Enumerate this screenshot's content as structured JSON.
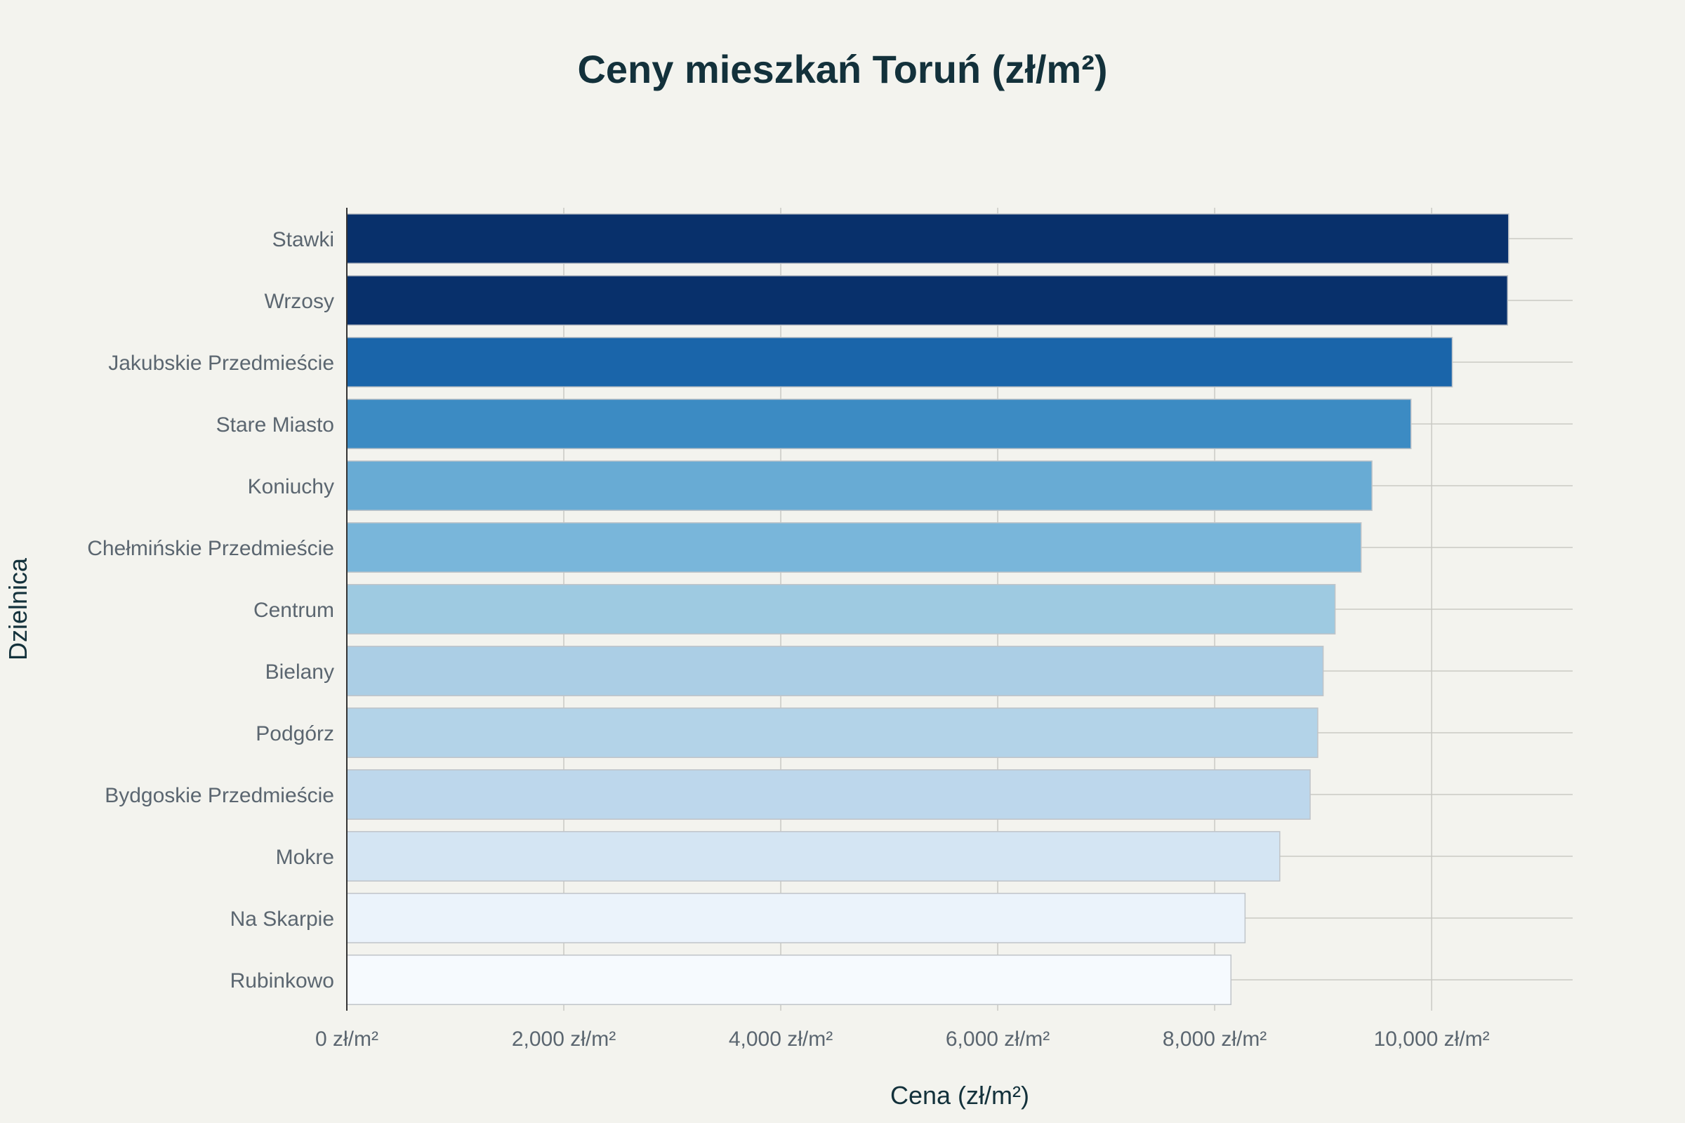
{
  "chart_data": {
    "type": "bar",
    "orientation": "horizontal",
    "title": "Ceny mieszkań Toruń (zł/m²)",
    "xlabel": "Cena (zł/m²)",
    "ylabel": "Dzielnica",
    "xlim": [
      0,
      11300
    ],
    "x_ticks": [
      0,
      2000,
      4000,
      6000,
      8000,
      10000
    ],
    "x_tick_labels": [
      "0 zł/m²",
      "2,000 zł/m²",
      "4,000 zł/m²",
      "6,000 zł/m²",
      "8,000 zł/m²",
      "10,000 zł/m²"
    ],
    "grid": true,
    "categories": [
      "Stawki",
      "Wrzosy",
      "Jakubskie Przedmieście",
      "Stare Miasto",
      "Koniuchy",
      "Chełmińskie Przedmieście",
      "Centrum",
      "Bielany",
      "Podgórz",
      "Bydgoskie Przedmieście",
      "Mokre",
      "Na Skarpie",
      "Rubinkowo"
    ],
    "values": [
      10710,
      10700,
      10190,
      9810,
      9450,
      9350,
      9110,
      9000,
      8950,
      8880,
      8600,
      8280,
      8150
    ],
    "colors": [
      "#08306b",
      "#08306b",
      "#1a65aa",
      "#3c8bc3",
      "#68abd4",
      "#79b6da",
      "#9ecae1",
      "#abcee5",
      "#b3d3e8",
      "#bdd7ec",
      "#d4e5f3",
      "#ebf3fb",
      "#f6fafe"
    ]
  }
}
